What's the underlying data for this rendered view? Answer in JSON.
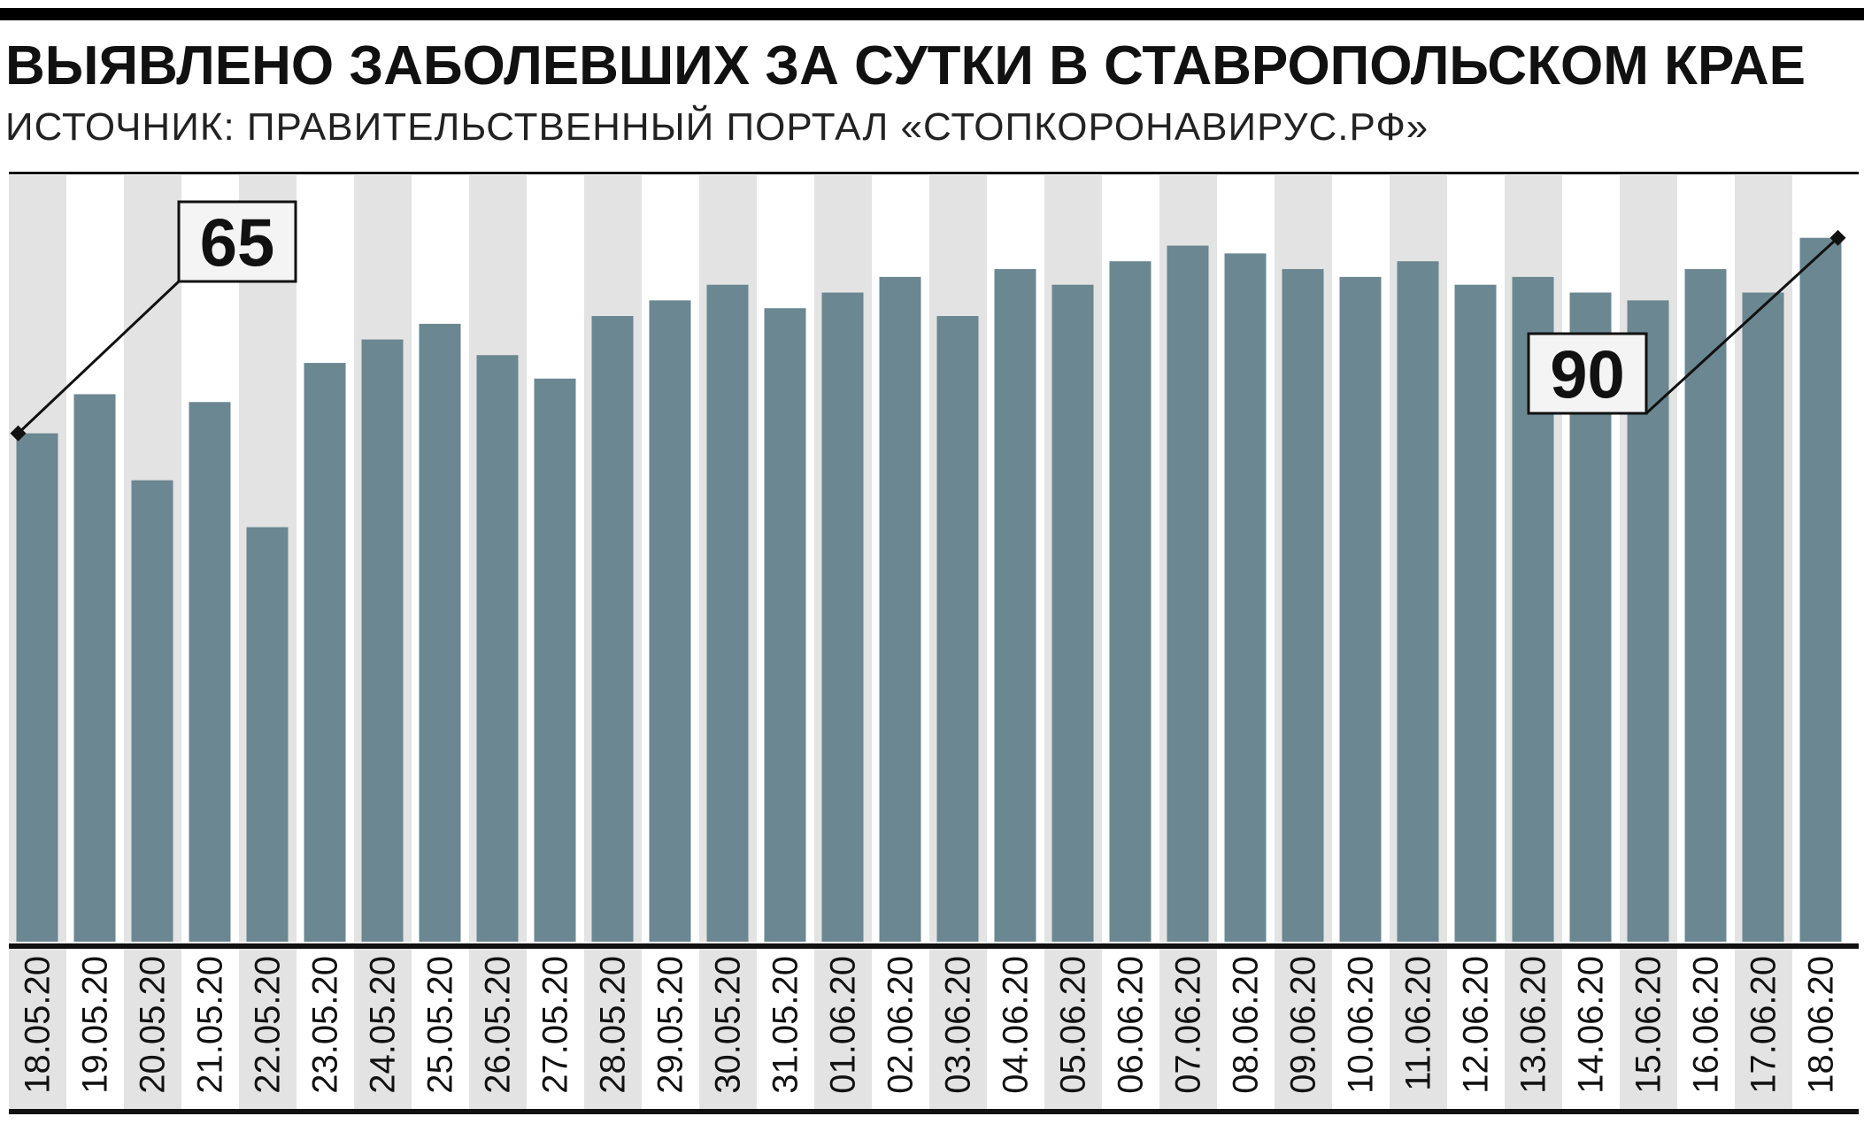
{
  "header": {
    "title_main": "ВЫЯВЛЕНО ЗАБОЛЕВШИХ ЗА СУТКИ В ",
    "title_accent": "СТАВРОПОЛЬСКОМ КРАЕ",
    "subtitle": "ИСТОЧНИК: ПРАВИТЕЛЬСТВЕННЫЙ ПОРТАЛ «СТОПКОРОНАВИРУС.РФ»"
  },
  "colors": {
    "bar": "#6b8791",
    "stripe": "#e3e3e3",
    "ink": "#111111"
  },
  "chart_data": {
    "type": "bar",
    "categories": [
      "18.05.20",
      "19.05.20",
      "20.05.20",
      "21.05.20",
      "22.05.20",
      "23.05.20",
      "24.05.20",
      "25.05.20",
      "26.05.20",
      "27.05.20",
      "28.05.20",
      "29.05.20",
      "30.05.20",
      "31.05.20",
      "01.06.20",
      "02.06.20",
      "03.06.20",
      "04.06.20",
      "05.06.20",
      "06.06.20",
      "07.06.20",
      "08.06.20",
      "09.06.20",
      "10.06.20",
      "11.06.20",
      "12.06.20",
      "13.06.20",
      "14.06.20",
      "15.06.20",
      "16.06.20",
      "17.06.20",
      "18.06.20"
    ],
    "values": [
      65,
      70,
      59,
      69,
      53,
      74,
      77,
      79,
      75,
      72,
      80,
      82,
      84,
      81,
      83,
      85,
      80,
      86,
      84,
      87,
      89,
      88,
      86,
      85,
      87,
      84,
      85,
      83,
      82,
      86,
      83,
      90
    ],
    "ylim": [
      0,
      98
    ],
    "annotations": [
      {
        "index": 0,
        "label": "65"
      },
      {
        "index": 31,
        "label": "90"
      }
    ],
    "grid": false,
    "legend": "none"
  }
}
